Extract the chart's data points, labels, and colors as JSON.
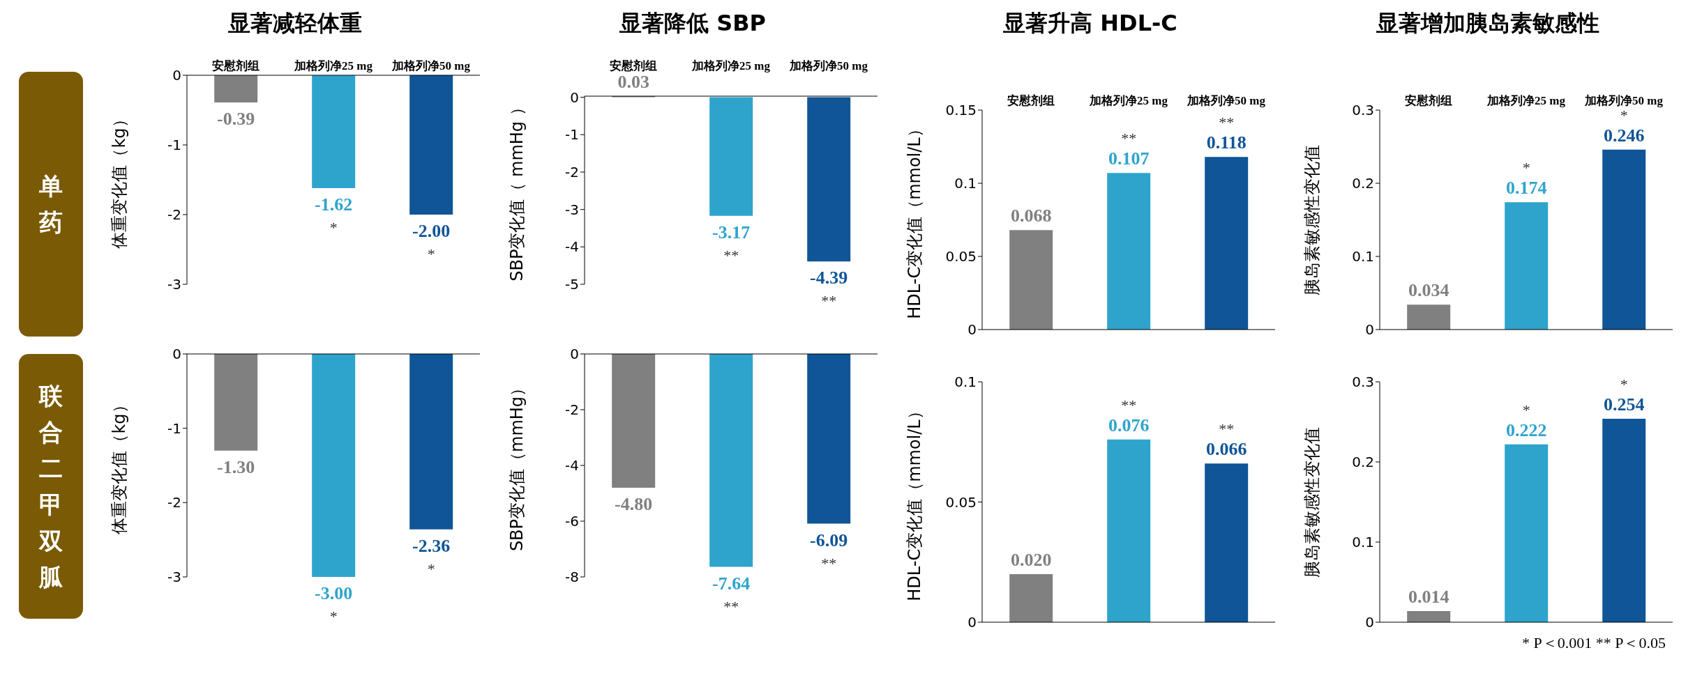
{
  "chart_data": [
    {
      "type": "bar",
      "title": "显著减轻体重",
      "ylabel": "体重变化值（kg）",
      "categories": [
        "安慰剂组",
        "加格列净25 mg",
        "加格列净50 mg"
      ],
      "values": [
        -0.39,
        -1.62,
        -2.0
      ],
      "value_labels": [
        "-0.39",
        "-1.62",
        "-2.00"
      ],
      "colors": [
        "#808080",
        "#2ea4cc",
        "#0f5597"
      ],
      "ylim": [
        -3,
        0
      ],
      "yticks": [
        0,
        -1,
        -2,
        -3
      ],
      "annotations": [
        "单药",
        {
          "text": "*",
          "x": "加格列净25 mg",
          "y": -1.62
        },
        {
          "text": "*",
          "x": "加格列净50 mg",
          "y": -2.0
        }
      ]
    },
    {
      "type": "bar",
      "title": "显著降低 SBP",
      "ylabel": "SBP变化值（ mmHg ）",
      "categories": [
        "安慰剂组",
        "加格列净25 mg",
        "加格列净50 mg"
      ],
      "values": [
        0.03,
        -3.17,
        -4.39
      ],
      "value_labels": [
        "0.03",
        "-3.17",
        "-4.39"
      ],
      "colors": [
        "#808080",
        "#2ea4cc",
        "#0f5597"
      ],
      "ylim": [
        -5,
        0.03
      ],
      "yticks": [
        0,
        -1,
        -2,
        -3,
        -4,
        -5
      ],
      "annotations": [
        {
          "text": "**",
          "x": "加格列净25 mg",
          "y": -3.17
        },
        {
          "text": "**",
          "x": "加格列净50 mg",
          "y": -4.39
        }
      ]
    },
    {
      "type": "bar",
      "title": "显著升高 HDL-C",
      "ylabel": "HDL-C变化值（mmol/L）",
      "categories": [
        "安慰剂组",
        "加格列净25 mg",
        "加格列净50 mg"
      ],
      "values": [
        0.068,
        0.107,
        0.118
      ],
      "value_labels": [
        "0.068",
        "0.107",
        "0.118"
      ],
      "colors": [
        "#808080",
        "#2ea4cc",
        "#0f5597"
      ],
      "ylim": [
        0,
        0.15
      ],
      "yticks": [
        0,
        0.05,
        0.1,
        0.15
      ],
      "annotations": [
        {
          "text": "**",
          "x": "加格列净25 mg",
          "y": 0.107
        },
        {
          "text": "**",
          "x": "加格列净50 mg",
          "y": 0.118
        }
      ]
    },
    {
      "type": "bar",
      "title": "显著增加胰岛素敏感性",
      "ylabel": "胰岛素敏感性变化值",
      "categories": [
        "安慰剂组",
        "加格列净25 mg",
        "加格列净50 mg"
      ],
      "values": [
        0.034,
        0.174,
        0.246
      ],
      "value_labels": [
        "0.034",
        "0.174",
        "0.246"
      ],
      "colors": [
        "#808080",
        "#2ea4cc",
        "#0f5597"
      ],
      "ylim": [
        0,
        0.3
      ],
      "yticks": [
        0,
        0.1,
        0.2,
        0.3
      ],
      "annotations": [
        {
          "text": "*",
          "x": "加格列净25 mg",
          "y": 0.174
        },
        {
          "text": "*",
          "x": "加格列净50 mg",
          "y": 0.246
        }
      ]
    },
    {
      "type": "bar",
      "ylabel": "体重变化值（kg）",
      "categories": [
        "安慰剂组",
        "加格列净25 mg",
        "加格列净50 mg"
      ],
      "tick_labels": "y",
      "values": [
        -1.3,
        -3.0,
        -2.36
      ],
      "value_labels": [
        "-1.30",
        "-3.00",
        "-2.36"
      ],
      "colors": [
        "#808080",
        "#2ea4cc",
        "#0f5597"
      ],
      "ylim": [
        -3,
        0
      ],
      "yticks": [
        0,
        -1,
        -2,
        -3
      ],
      "annotations": [
        "联合二甲双胍",
        {
          "text": "*",
          "x": "加格列净25 mg",
          "y": -3.0
        },
        {
          "text": "*",
          "x": "加格列净50 mg",
          "y": -2.36
        }
      ]
    },
    {
      "type": "bar",
      "ylabel": "SBP变化值（mmHg）",
      "categories": [
        "安慰剂组",
        "加格列净25 mg",
        "加格列净50 mg"
      ],
      "tick_labels": "y",
      "values": [
        -4.8,
        -7.64,
        -6.09
      ],
      "value_labels": [
        "-4.80",
        "-7.64",
        "-6.09"
      ],
      "colors": [
        "#808080",
        "#2ea4cc",
        "#0f5597"
      ],
      "ylim": [
        -8,
        0
      ],
      "yticks": [
        0,
        -2,
        -4,
        -6,
        -8
      ],
      "annotations": [
        {
          "text": "**",
          "x": "加格列净25 mg",
          "y": -7.64
        },
        {
          "text": "**",
          "x": "加格列净50 mg",
          "y": -6.09
        }
      ]
    },
    {
      "type": "bar",
      "ylabel": "HDL-C变化值（mmol/L）",
      "categories": [
        "安慰剂组",
        "加格列净25 mg",
        "加格列净50 mg"
      ],
      "tick_labels": "y",
      "values": [
        0.02,
        0.076,
        0.066
      ],
      "value_labels": [
        "0.020",
        "0.076",
        "0.066"
      ],
      "colors": [
        "#808080",
        "#2ea4cc",
        "#0f5597"
      ],
      "ylim": [
        0,
        0.1
      ],
      "yticks": [
        0,
        0.05,
        0.1
      ],
      "annotations": [
        {
          "text": "**",
          "x": "加格列净25 mg",
          "y": 0.076
        },
        {
          "text": "**",
          "x": "加格列净50 mg",
          "y": 0.066
        }
      ]
    },
    {
      "type": "bar",
      "ylabel": "胰岛素敏感性变化值",
      "categories": [
        "安慰剂组",
        "加格列净25 mg",
        "加格列净50 mg"
      ],
      "tick_labels": "y",
      "values": [
        0.014,
        0.222,
        0.254
      ],
      "value_labels": [
        "0.014",
        "0.222",
        "0.254"
      ],
      "colors": [
        "#808080",
        "#2ea4cc",
        "#0f5597"
      ],
      "ylim": [
        0,
        0.3
      ],
      "yticks": [
        0,
        0.1,
        0.2,
        0.3
      ],
      "annotations": [
        {
          "text": "*",
          "x": "加格列净25 mg",
          "y": 0.222
        },
        {
          "text": "*",
          "x": "加格列净50 mg",
          "y": 0.254
        },
        "* P＜0.001  ** P＜0.05"
      ]
    }
  ]
}
